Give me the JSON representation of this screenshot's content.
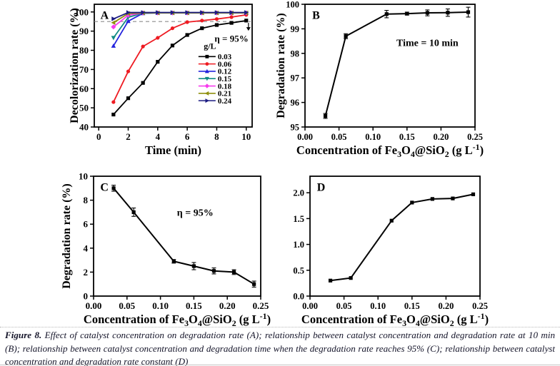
{
  "figure": {
    "caption_label": "Figure 8.",
    "caption_text": " Effect of catalyst concentration on degradation rate (A); relationship between catalyst concentration and degradation rate at 10 min (B); relationship between catalyst concentration and degradation time when the degradation rate reaches 95% (C); relationship between catalyst concentration and degradation rate constant (D)"
  },
  "chart_data": [
    {
      "id": "A",
      "type": "line",
      "panel_label": "A",
      "xlabel": "Time (min)",
      "ylabel": "Decolorization rate (%)",
      "xlim": [
        -0.3,
        10.4
      ],
      "ylim": [
        40,
        104
      ],
      "xticks": [
        0,
        2,
        4,
        6,
        8,
        10
      ],
      "xtick_labels": [
        "0",
        "2",
        "4",
        "6",
        "8",
        "10"
      ],
      "yticks": [
        40,
        50,
        60,
        70,
        80,
        90,
        100
      ],
      "ytick_labels": [
        "40",
        "50",
        "60",
        "70",
        "80",
        "90",
        "100"
      ],
      "grid": false,
      "x": [
        1,
        2,
        3,
        4,
        5,
        6,
        7,
        8,
        9,
        10
      ],
      "series": [
        {
          "name": "0.03",
          "color": "#000000",
          "marker": "square",
          "values": [
            46.5,
            55,
            63,
            74,
            82.5,
            88,
            91.5,
            93.2,
            94.3,
            95.5
          ]
        },
        {
          "name": "0.06",
          "color": "#ee1b22",
          "marker": "circle",
          "values": [
            53,
            69,
            82,
            86.5,
            91.5,
            94.7,
            95.5,
            96.3,
            97.3,
            98.5
          ]
        },
        {
          "name": "0.12",
          "color": "#2424dd",
          "marker": "triangle-up",
          "values": [
            82.3,
            95.2,
            99.3,
            99.5,
            99.5,
            99.5,
            99.5,
            99.5,
            99.5,
            99.5
          ]
        },
        {
          "name": "0.15",
          "color": "#108a84",
          "marker": "triangle-down",
          "values": [
            86.5,
            97.2,
            99.4,
            99.5,
            99.5,
            99.5,
            99.5,
            99.5,
            99.5,
            99.5
          ]
        },
        {
          "name": "0.18",
          "color": "#f73ced",
          "marker": "diamond",
          "values": [
            92.2,
            98.3,
            99.5,
            99.5,
            99.5,
            99.5,
            99.5,
            99.5,
            99.5,
            99.5
          ]
        },
        {
          "name": "0.21",
          "color": "#8f8f0e",
          "marker": "triangle-left",
          "values": [
            94.4,
            99.2,
            99.5,
            99.5,
            99.5,
            99.5,
            99.5,
            99.5,
            99.5,
            99.5
          ]
        },
        {
          "name": "0.24",
          "color": "#1c1c82",
          "marker": "triangle-right",
          "values": [
            96.4,
            99.7,
            99.7,
            99.7,
            99.7,
            99.7,
            99.7,
            99.7,
            99.7,
            99.7
          ]
        }
      ],
      "legend": {
        "title": "g/L",
        "position": {
          "fx": 0.66,
          "fy": 0.31
        }
      },
      "ref_line": {
        "y": 95,
        "x_end": 10.3,
        "dash": true,
        "color": "#8c8c8c"
      },
      "arrow": {
        "x": 10.15,
        "y_from": 94.3,
        "y_to": 90.2
      },
      "annotations": [
        {
          "text": "η = 95%",
          "x": 9.0,
          "y": 84.5,
          "size": 13
        }
      ]
    },
    {
      "id": "B",
      "type": "line",
      "panel_label": "B",
      "xlabel": "Concentration of Fe_{3}O_{4}@SiO_{2} (g L^{-1})",
      "ylabel": "Degradation rate (%)",
      "xlim": [
        0,
        0.25
      ],
      "ylim": [
        95,
        100
      ],
      "xticks": [
        0,
        0.05,
        0.1,
        0.15,
        0.2,
        0.25
      ],
      "xtick_labels": [
        "0.00",
        "0.05",
        "0.10",
        "0.15",
        "0.20",
        "0.25"
      ],
      "yticks": [
        95,
        96,
        97,
        98,
        99,
        100
      ],
      "ytick_labels": [
        "95",
        "96",
        "97",
        "98",
        "99",
        "100"
      ],
      "grid": false,
      "x": [
        0.03,
        0.06,
        0.12,
        0.15,
        0.18,
        0.21,
        0.24
      ],
      "series": [
        {
          "name": "degradation rate at 10 min",
          "color": "#000000",
          "marker": "square",
          "values": [
            95.45,
            98.7,
            99.6,
            99.62,
            99.65,
            99.66,
            99.68
          ],
          "err": [
            0.1,
            0.1,
            0.15,
            0.06,
            0.12,
            0.15,
            0.2
          ]
        }
      ],
      "legend": null,
      "annotations": [
        {
          "text": "Time = 10 min",
          "x": 0.18,
          "y": 98.3,
          "size": 14
        }
      ]
    },
    {
      "id": "C",
      "type": "line",
      "panel_label": "C",
      "xlabel": "Concentration of Fe_{3}O_{4}@SiO_{2} (g L^{-1})",
      "ylabel": "Degradation rate (%)",
      "xlim": [
        0,
        0.25
      ],
      "ylim": [
        0,
        10
      ],
      "xticks": [
        0,
        0.05,
        0.1,
        0.15,
        0.2,
        0.25
      ],
      "xtick_labels": [
        "0.00",
        "0.05",
        "0.10",
        "0.15",
        "0.20",
        "0.25"
      ],
      "yticks": [
        0,
        2,
        4,
        6,
        8,
        10
      ],
      "ytick_labels": [
        "0",
        "2",
        "4",
        "6",
        "8",
        "10"
      ],
      "grid": false,
      "x": [
        0.03,
        0.06,
        0.12,
        0.15,
        0.18,
        0.21,
        0.24
      ],
      "series": [
        {
          "name": "degradation time to 95%",
          "color": "#000000",
          "marker": "square",
          "values": [
            9.0,
            7.0,
            2.9,
            2.5,
            2.1,
            2.0,
            1.0
          ],
          "err": [
            0.25,
            0.35,
            0.15,
            0.3,
            0.25,
            0.2,
            0.25
          ]
        }
      ],
      "legend": null,
      "annotations": [
        {
          "text": "η = 95%",
          "x": 0.152,
          "y": 6.7,
          "size": 14
        }
      ]
    },
    {
      "id": "D",
      "type": "line",
      "panel_label": "D",
      "xlabel": "Concentration of Fe_{3}O_{4}@SiO_{2} (g L^{-1})",
      "ylabel": "",
      "xlim": [
        0,
        0.25
      ],
      "ylim": [
        0,
        2.32
      ],
      "xticks": [
        0,
        0.05,
        0.1,
        0.15,
        0.2,
        0.25
      ],
      "xtick_labels": [
        "0.00",
        "0.05",
        "0.10",
        "0.15",
        "0.20",
        "0.25"
      ],
      "yticks": [
        0,
        0.5,
        1.0,
        1.5,
        2.0
      ],
      "ytick_labels": [
        "0.0",
        "0.5",
        "1.0",
        "1.5",
        "2.0"
      ],
      "grid": false,
      "x": [
        0.03,
        0.06,
        0.12,
        0.15,
        0.18,
        0.21,
        0.24
      ],
      "series": [
        {
          "name": "degradation rate constant",
          "color": "#000000",
          "marker": "square",
          "values": [
            0.3,
            0.35,
            1.46,
            1.81,
            1.88,
            1.89,
            1.97
          ]
        }
      ],
      "legend": null,
      "annotations": []
    }
  ]
}
